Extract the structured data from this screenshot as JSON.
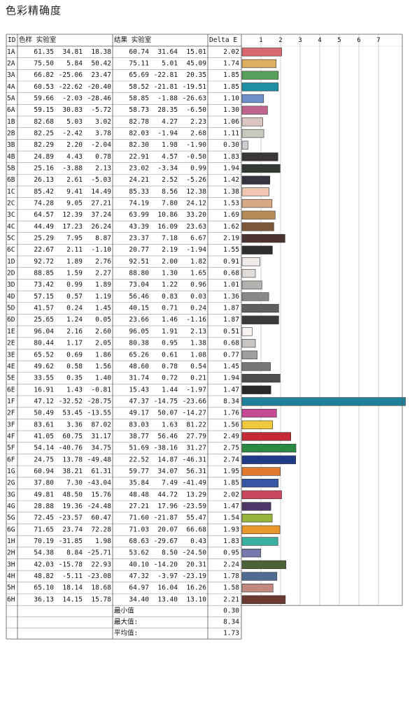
{
  "title": "色彩精确度",
  "table": {
    "headers": {
      "id": "ID",
      "sample": "色样 实验室",
      "result": "结果 实验室",
      "delta": "Delta E"
    },
    "summary": [
      {
        "label": "最小值",
        "value": "0.30"
      },
      {
        "label": "最大值:",
        "value": "8.34"
      },
      {
        "label": "平均值:",
        "value": "1.73"
      }
    ]
  },
  "chart_data": {
    "type": "bar",
    "orientation": "horizontal",
    "xlim": [
      0,
      8
    ],
    "xticks": [
      "1",
      "2",
      "3",
      "4",
      "5",
      "6",
      "7"
    ],
    "grid": true,
    "rows": [
      {
        "id": "1A",
        "s": [
          "61.35",
          "34.81",
          "18.38"
        ],
        "r": [
          "60.74",
          "31.64",
          "15.01"
        ],
        "de": "2.02",
        "color": "#d9676f"
      },
      {
        "id": "2A",
        "s": [
          "75.50",
          "5.84",
          "50.42"
        ],
        "r": [
          "75.11",
          "5.01",
          "45.09"
        ],
        "de": "1.74",
        "color": "#deae63"
      },
      {
        "id": "3A",
        "s": [
          "66.82",
          "-25.06",
          "23.47"
        ],
        "r": [
          "65.69",
          "-22.81",
          "20.35"
        ],
        "de": "1.85",
        "color": "#57a15c"
      },
      {
        "id": "4A",
        "s": [
          "60.53",
          "-22.62",
          "-20.40"
        ],
        "r": [
          "58.52",
          "-21.81",
          "-19.51"
        ],
        "de": "1.85",
        "color": "#1f8fa6"
      },
      {
        "id": "5A",
        "s": [
          "59.66",
          "-2.03",
          "-28.46"
        ],
        "r": [
          "58.85",
          "-1.88",
          "-26.63"
        ],
        "de": "1.10",
        "color": "#6f8fcb"
      },
      {
        "id": "6A",
        "s": [
          "59.15",
          "30.83",
          "-5.72"
        ],
        "r": [
          "58.73",
          "28.35",
          "-6.50"
        ],
        "de": "1.30",
        "color": "#c0648e"
      },
      {
        "id": "1B",
        "s": [
          "82.68",
          "5.03",
          "3.02"
        ],
        "r": [
          "82.78",
          "4.27",
          "2.23"
        ],
        "de": "1.06",
        "color": "#dcc6c3"
      },
      {
        "id": "2B",
        "s": [
          "82.25",
          "-2.42",
          "3.78"
        ],
        "r": [
          "82.03",
          "-1.94",
          "2.68"
        ],
        "de": "1.11",
        "color": "#c7cbbd"
      },
      {
        "id": "3B",
        "s": [
          "82.29",
          "2.20",
          "-2.04"
        ],
        "r": [
          "82.30",
          "1.98",
          "-1.90"
        ],
        "de": "0.30",
        "color": "#cfcdd3"
      },
      {
        "id": "4B",
        "s": [
          "24.89",
          "4.43",
          "0.78"
        ],
        "r": [
          "22.91",
          "4.57",
          "-0.50"
        ],
        "de": "1.83",
        "color": "#3a3536"
      },
      {
        "id": "5B",
        "s": [
          "25.16",
          "-3.88",
          "2.13"
        ],
        "r": [
          "23.02",
          "-3.34",
          "0.99"
        ],
        "de": "1.94",
        "color": "#333a33"
      },
      {
        "id": "6B",
        "s": [
          "26.13",
          "2.61",
          "-5.03"
        ],
        "r": [
          "24.21",
          "2.52",
          "-5.26"
        ],
        "de": "1.42",
        "color": "#36353f"
      },
      {
        "id": "1C",
        "s": [
          "85.42",
          "9.41",
          "14.49"
        ],
        "r": [
          "85.33",
          "8.56",
          "12.38"
        ],
        "de": "1.38",
        "color": "#f1c7b3"
      },
      {
        "id": "2C",
        "s": [
          "74.28",
          "9.05",
          "27.21"
        ],
        "r": [
          "74.19",
          "7.80",
          "24.12"
        ],
        "de": "1.53",
        "color": "#d9a985"
      },
      {
        "id": "3C",
        "s": [
          "64.57",
          "12.39",
          "37.24"
        ],
        "r": [
          "63.99",
          "10.86",
          "33.20"
        ],
        "de": "1.69",
        "color": "#b88a57"
      },
      {
        "id": "4C",
        "s": [
          "44.49",
          "17.23",
          "26.24"
        ],
        "r": [
          "43.39",
          "16.09",
          "23.63"
        ],
        "de": "1.62",
        "color": "#7d5738"
      },
      {
        "id": "5C",
        "s": [
          "25.29",
          "7.95",
          "8.87"
        ],
        "r": [
          "23.37",
          "7.18",
          "6.67"
        ],
        "de": "2.19",
        "color": "#4a3330"
      },
      {
        "id": "6C",
        "s": [
          "22.67",
          "2.11",
          "-1.10"
        ],
        "r": [
          "20.77",
          "2.19",
          "-1.94"
        ],
        "de": "1.55",
        "color": "#302d2e"
      },
      {
        "id": "1D",
        "s": [
          "92.72",
          "1.89",
          "2.76"
        ],
        "r": [
          "92.51",
          "2.00",
          "1.82"
        ],
        "de": "0.91",
        "color": "#f0ebe8"
      },
      {
        "id": "2D",
        "s": [
          "88.85",
          "1.59",
          "2.27"
        ],
        "r": [
          "88.80",
          "1.30",
          "1.65"
        ],
        "de": "0.68",
        "color": "#e2dcd9"
      },
      {
        "id": "3D",
        "s": [
          "73.42",
          "0.99",
          "1.89"
        ],
        "r": [
          "73.04",
          "1.22",
          "0.96"
        ],
        "de": "1.01",
        "color": "#b4b1ae"
      },
      {
        "id": "4D",
        "s": [
          "57.15",
          "0.57",
          "1.19"
        ],
        "r": [
          "56.46",
          "0.83",
          "0.03"
        ],
        "de": "1.36",
        "color": "#8a8887"
      },
      {
        "id": "5D",
        "s": [
          "41.57",
          "0.24",
          "1.45"
        ],
        "r": [
          "40.15",
          "0.71",
          "0.24"
        ],
        "de": "1.87",
        "color": "#605f5e"
      },
      {
        "id": "6D",
        "s": [
          "25.65",
          "1.24",
          "0.05"
        ],
        "r": [
          "23.66",
          "1.46",
          "-1.16"
        ],
        "de": "1.87",
        "color": "#3c3b3b"
      },
      {
        "id": "1E",
        "s": [
          "96.04",
          "2.16",
          "2.60"
        ],
        "r": [
          "96.05",
          "1.91",
          "2.13"
        ],
        "de": "0.51",
        "color": "#f8f3f1"
      },
      {
        "id": "2E",
        "s": [
          "80.44",
          "1.17",
          "2.05"
        ],
        "r": [
          "80.38",
          "0.95",
          "1.38"
        ],
        "de": "0.68",
        "color": "#c7c4c2"
      },
      {
        "id": "3E",
        "s": [
          "65.52",
          "0.69",
          "1.86"
        ],
        "r": [
          "65.26",
          "0.61",
          "1.08"
        ],
        "de": "0.77",
        "color": "#a09e9c"
      },
      {
        "id": "4E",
        "s": [
          "49.62",
          "0.58",
          "1.56"
        ],
        "r": [
          "48.60",
          "0.78",
          "0.54"
        ],
        "de": "1.45",
        "color": "#777574"
      },
      {
        "id": "5E",
        "s": [
          "33.55",
          "0.35",
          "1.40"
        ],
        "r": [
          "31.74",
          "0.72",
          "0.21"
        ],
        "de": "1.94",
        "color": "#4e4d4c"
      },
      {
        "id": "6E",
        "s": [
          "16.91",
          "1.43",
          "-0.81"
        ],
        "r": [
          "15.43",
          "1.44",
          "-1.97"
        ],
        "de": "1.47",
        "color": "#282727"
      },
      {
        "id": "1F",
        "s": [
          "47.12",
          "-32.52",
          "-28.75"
        ],
        "r": [
          "47.37",
          "-14.75",
          "-23.66"
        ],
        "de": "8.34",
        "color": "#1f8199"
      },
      {
        "id": "2F",
        "s": [
          "50.49",
          "53.45",
          "-13.55"
        ],
        "r": [
          "49.17",
          "50.07",
          "-14.27"
        ],
        "de": "1.76",
        "color": "#c64a95"
      },
      {
        "id": "3F",
        "s": [
          "83.61",
          "3.36",
          "87.02"
        ],
        "r": [
          "83.03",
          "1.63",
          "81.22"
        ],
        "de": "1.56",
        "color": "#f0c93a"
      },
      {
        "id": "4F",
        "s": [
          "41.05",
          "60.75",
          "31.17"
        ],
        "r": [
          "38.77",
          "56.46",
          "27.79"
        ],
        "de": "2.49",
        "color": "#c32a35"
      },
      {
        "id": "5F",
        "s": [
          "54.14",
          "-40.76",
          "34.75"
        ],
        "r": [
          "51.69",
          "-38.16",
          "31.27"
        ],
        "de": "2.75",
        "color": "#2a8a42"
      },
      {
        "id": "6F",
        "s": [
          "24.75",
          "13.78",
          "-49.48"
        ],
        "r": [
          "22.52",
          "14.87",
          "-46.31"
        ],
        "de": "2.74",
        "color": "#1f3a86"
      },
      {
        "id": "1G",
        "s": [
          "60.94",
          "38.21",
          "61.31"
        ],
        "r": [
          "59.77",
          "34.07",
          "56.31"
        ],
        "de": "1.95",
        "color": "#e0782e"
      },
      {
        "id": "2G",
        "s": [
          "37.80",
          "7.30",
          "-43.04"
        ],
        "r": [
          "35.84",
          "7.49",
          "-41.49"
        ],
        "de": "1.85",
        "color": "#3655a3"
      },
      {
        "id": "3G",
        "s": [
          "49.81",
          "48.50",
          "15.76"
        ],
        "r": [
          "48.48",
          "44.72",
          "13.29"
        ],
        "de": "2.02",
        "color": "#c9485f"
      },
      {
        "id": "4G",
        "s": [
          "28.88",
          "19.36",
          "-24.48"
        ],
        "r": [
          "27.21",
          "17.96",
          "-23.59"
        ],
        "de": "1.47",
        "color": "#4d3766"
      },
      {
        "id": "5G",
        "s": [
          "72.45",
          "-23.57",
          "60.47"
        ],
        "r": [
          "71.60",
          "-21.87",
          "55.47"
        ],
        "de": "1.54",
        "color": "#97b53e"
      },
      {
        "id": "6G",
        "s": [
          "71.65",
          "23.74",
          "72.28"
        ],
        "r": [
          "71.03",
          "20.07",
          "66.68"
        ],
        "de": "1.93",
        "color": "#e8982d"
      },
      {
        "id": "1H",
        "s": [
          "70.19",
          "-31.85",
          "1.98"
        ],
        "r": [
          "68.63",
          "-29.67",
          "0.43"
        ],
        "de": "1.83",
        "color": "#39b0a0"
      },
      {
        "id": "2H",
        "s": [
          "54.38",
          "8.84",
          "-25.71"
        ],
        "r": [
          "53.62",
          "8.50",
          "-24.50"
        ],
        "de": "0.95",
        "color": "#7779ad"
      },
      {
        "id": "3H",
        "s": [
          "42.03",
          "-15.78",
          "22.93"
        ],
        "r": [
          "40.10",
          "-14.20",
          "20.31"
        ],
        "de": "2.24",
        "color": "#4d6236"
      },
      {
        "id": "4H",
        "s": [
          "48.82",
          "-5.11",
          "-23.08"
        ],
        "r": [
          "47.32",
          "-3.97",
          "-23.19"
        ],
        "de": "1.78",
        "color": "#4f6d91"
      },
      {
        "id": "5H",
        "s": [
          "65.10",
          "18.14",
          "18.68"
        ],
        "r": [
          "64.97",
          "16.04",
          "16.26"
        ],
        "de": "1.58",
        "color": "#c28a7e"
      },
      {
        "id": "6H",
        "s": [
          "36.13",
          "14.15",
          "15.78"
        ],
        "r": [
          "34.40",
          "13.40",
          "13.10"
        ],
        "de": "2.21",
        "color": "#6b3a31"
      }
    ]
  }
}
